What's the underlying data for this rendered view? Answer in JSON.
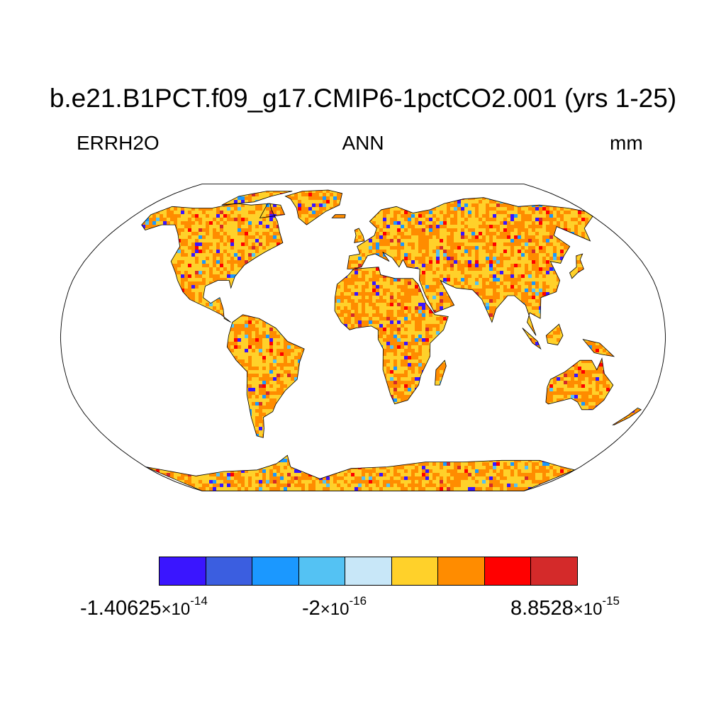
{
  "title": "b.e21.B1PCT.f09_g17.CMIP6-1pctCO2.001 (yrs 1-25)",
  "subtitle_left": "ERRH2O",
  "subtitle_center": "ANN",
  "subtitle_right": "mm",
  "map": {
    "projection": "robinson",
    "ocean_color": "#ffffff",
    "land_dominant_colors": [
      "#ffd12a",
      "#ff8c00"
    ],
    "coastline_color": "#000000"
  },
  "colorbar": {
    "colors": [
      "#3a15ff",
      "#3b5ee0",
      "#1b98ff",
      "#54c2f3",
      "#c8e7f8",
      "#ffd12a",
      "#ff8c00",
      "#ff0000",
      "#d42a2a"
    ],
    "labels": [
      {
        "mantissa": "-1.40625",
        "times": "×10",
        "exp": "-14"
      },
      {
        "mantissa": "-2",
        "times": "×10",
        "exp": "-16"
      },
      {
        "mantissa": "8.8528",
        "times": "×10",
        "exp": "-15"
      }
    ]
  }
}
